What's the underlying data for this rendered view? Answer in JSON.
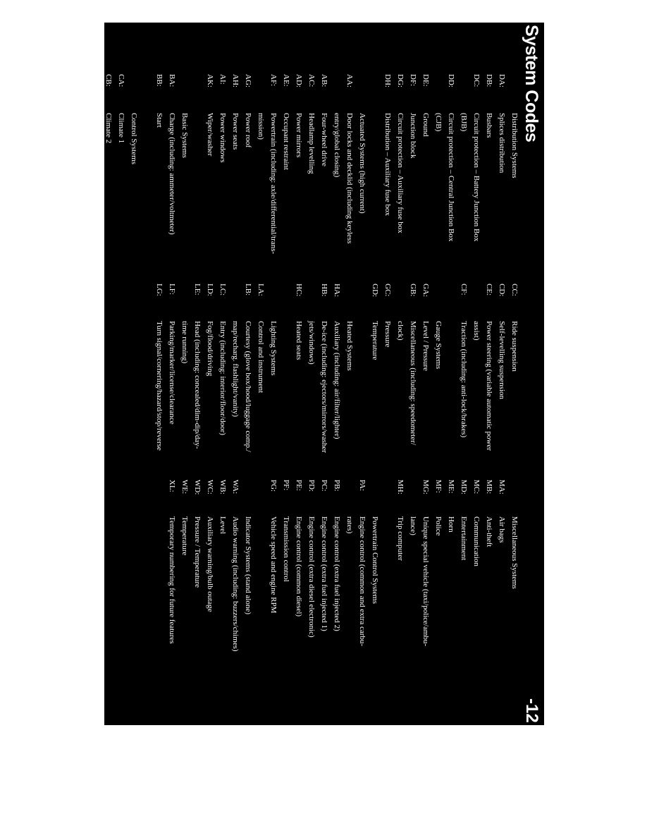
{
  "page": {
    "title": "System Codes",
    "page_number": "-12",
    "background_color": "#000000",
    "text_color": "#ffffff"
  },
  "columns": [
    {
      "rows": [
        {
          "r": 0,
          "code": "",
          "text": "Distribution Systems",
          "heading": true
        },
        {
          "r": 1,
          "code": "DA:",
          "text": "Splices distribution"
        },
        {
          "r": 2,
          "code": "DB:",
          "text": "Busbars"
        },
        {
          "r": 3,
          "code": "DC:",
          "text": "Circuit protection – Battery Junction Box"
        },
        {
          "r": 4,
          "code": "",
          "text": "(BJB)"
        },
        {
          "r": 5,
          "code": "DD:",
          "text": "Circuit protection – Central Junction Box"
        },
        {
          "r": 6,
          "code": "",
          "text": "(CJB)"
        },
        {
          "r": 7,
          "code": "DE:",
          "text": "Ground"
        },
        {
          "r": 8,
          "code": "DF:",
          "text": "Junction block"
        },
        {
          "r": 9,
          "code": "DG:",
          "text": "Circuit protection – Auxiliary fuse box"
        },
        {
          "r": 10,
          "code": "DH:",
          "text": "Distribution – Auxiliary fuse box"
        },
        {
          "r": 12,
          "code": "",
          "text": "Actuated Systems (high current)",
          "heading": true
        },
        {
          "r": 13,
          "code": "AA:",
          "text": "Door locks and decklid (including keyless"
        },
        {
          "r": 14,
          "code": "",
          "text": "entry/global closing)"
        },
        {
          "r": 15,
          "code": "AB:",
          "text": "Four-wheel drive"
        },
        {
          "r": 16,
          "code": "AC:",
          "text": "Headlamp levelling"
        },
        {
          "r": 17,
          "code": "AD:",
          "text": "Power mirrors"
        },
        {
          "r": 18,
          "code": "AE:",
          "text": "Occupant restraint"
        },
        {
          "r": 19,
          "code": "AF:",
          "text": "Powertrain (including: axle/differential/trans-"
        },
        {
          "r": 20,
          "code": "",
          "text": "mission)"
        },
        {
          "r": 21,
          "code": "AG:",
          "text": "Power roof"
        },
        {
          "r": 22,
          "code": "AH:",
          "text": "Power seats"
        },
        {
          "r": 23,
          "code": "AI:",
          "text": "Power windows"
        },
        {
          "r": 24,
          "code": "AK:",
          "text": "Wiper/washer"
        },
        {
          "r": 26,
          "code": "",
          "text": "Basic Systems",
          "heading": true
        },
        {
          "r": 27,
          "code": "BA:",
          "text": "Charge (including: ammeter/voltmeter)"
        },
        {
          "r": 28,
          "code": "BB:",
          "text": "Start"
        },
        {
          "r": 30,
          "code": "",
          "text": "Control Systems",
          "heading": true
        },
        {
          "r": 31,
          "code": "CA:",
          "text": "Climate 1"
        },
        {
          "r": 32,
          "code": "CB:",
          "text": "Climate 2"
        }
      ]
    },
    {
      "rows": [
        {
          "r": 0,
          "code": "CC:",
          "text": "Ride suspension"
        },
        {
          "r": 1,
          "code": "CD:",
          "text": "Self-levelling suspension"
        },
        {
          "r": 2,
          "code": "CE:",
          "text": "Power steering (variable automatic power"
        },
        {
          "r": 3,
          "code": "",
          "text": "assist)"
        },
        {
          "r": 4,
          "code": "CF:",
          "text": "Traction (including: anti-lock/brakes)"
        },
        {
          "r": 6,
          "code": "",
          "text": "Gauge Systems",
          "heading": true
        },
        {
          "r": 7,
          "code": "GA:",
          "text": "Level / Pressure"
        },
        {
          "r": 8,
          "code": "GB:",
          "text": "Miscellaneous (including: speedometer/"
        },
        {
          "r": 9,
          "code": "",
          "text": "clock)"
        },
        {
          "r": 10,
          "code": "GC:",
          "text": "Pressure"
        },
        {
          "r": 11,
          "code": "GD:",
          "text": "Temperature"
        },
        {
          "r": 13,
          "code": "",
          "text": "Heated Systems",
          "heading": true
        },
        {
          "r": 14,
          "code": "HA:",
          "text": "Auxiliary (including: air/filter/lighter)"
        },
        {
          "r": 15,
          "code": "HB:",
          "text": "De-ice (including: ejectors/mirrors/washer"
        },
        {
          "r": 16,
          "code": "",
          "text": "jets/windows)"
        },
        {
          "r": 17,
          "code": "HC:",
          "text": "Heated seats"
        },
        {
          "r": 19,
          "code": "",
          "text": "Lighting Systems",
          "heading": true
        },
        {
          "r": 20,
          "code": "LA:",
          "text": "Control and instrument"
        },
        {
          "r": 21,
          "code": "LB:",
          "text": "Courtesy (glove box/hood/luggage comp./"
        },
        {
          "r": 22,
          "code": "",
          "text": "map/recharg. flashlight/vanity)"
        },
        {
          "r": 23,
          "code": "LC:",
          "text": "Entry (including: interior/floor/door)"
        },
        {
          "r": 24,
          "code": "LD:",
          "text": "Fog/flood/driving"
        },
        {
          "r": 25,
          "code": "LE:",
          "text": "Head (including: concealed/dim-dip/day-"
        },
        {
          "r": 26,
          "code": "",
          "text": "time running)"
        },
        {
          "r": 27,
          "code": "LF:",
          "text": "Parking/marker/license/clearance"
        },
        {
          "r": 28,
          "code": "LG:",
          "text": "Turn signal/cornering/hazard/stop/reverse"
        }
      ]
    },
    {
      "rows": [
        {
          "r": 0,
          "code": "",
          "text": "Miscellaneous Systems",
          "heading": true
        },
        {
          "r": 1,
          "code": "MA:",
          "text": "Air bags"
        },
        {
          "r": 2,
          "code": "MB:",
          "text": "Anti-theft"
        },
        {
          "r": 3,
          "code": "MC:",
          "text": "Communication"
        },
        {
          "r": 4,
          "code": "MD:",
          "text": "Entertainment"
        },
        {
          "r": 5,
          "code": "ME:",
          "text": "Horn"
        },
        {
          "r": 6,
          "code": "MF:",
          "text": "Police"
        },
        {
          "r": 7,
          "code": "MG:",
          "text": "Unique special vehicle (taxi/police/ambu-"
        },
        {
          "r": 8,
          "code": "",
          "text": "lance)"
        },
        {
          "r": 9,
          "code": "MH:",
          "text": "Trip computer"
        },
        {
          "r": 11,
          "code": "",
          "text": "Powertrain Control Systems",
          "heading": true
        },
        {
          "r": 12,
          "code": "PA:",
          "text": "Engine control (common and extra carbu-"
        },
        {
          "r": 13,
          "code": "",
          "text": "rates)"
        },
        {
          "r": 14,
          "code": "PB:",
          "text": "Engine control (extra fuel injected 2)"
        },
        {
          "r": 15,
          "code": "PC:",
          "text": "Engine control (extra fuel injected 1)"
        },
        {
          "r": 16,
          "code": "PD:",
          "text": "Engine control (extra diesel electronic)"
        },
        {
          "r": 17,
          "code": "PE:",
          "text": "Engine control (common diesel)"
        },
        {
          "r": 18,
          "code": "PF:",
          "text": "Transmission control"
        },
        {
          "r": 19,
          "code": "PG:",
          "text": "Vehicle speed and engine RPM"
        },
        {
          "r": 21,
          "code": "",
          "text": "Indicator Systems (stand alone)",
          "heading": true
        },
        {
          "r": 22,
          "code": "WA:",
          "text": "Audio warning (including: buzzers/chimes)"
        },
        {
          "r": 23,
          "code": "WB:",
          "text": "Level"
        },
        {
          "r": 24,
          "code": "WC:",
          "text": "Auxiliary warning/bulb outage"
        },
        {
          "r": 25,
          "code": "WD:",
          "text": "Pressure / Temperature"
        },
        {
          "r": 26,
          "code": "WE:",
          "text": "Temperature"
        },
        {
          "r": 27,
          "code": "XL:",
          "text": "Temporary numbering for future features"
        }
      ]
    }
  ]
}
